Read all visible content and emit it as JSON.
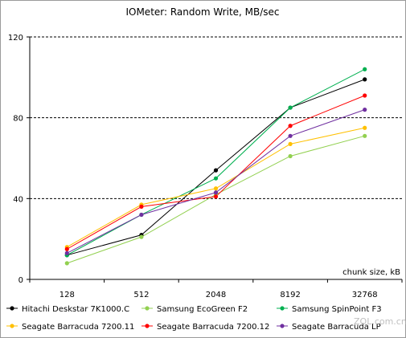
{
  "chart_data": {
    "type": "line",
    "title": "IOMeter: Random  Write, MB/sec",
    "xlabel": "chunk size, kB",
    "ylabel": "",
    "categories": [
      "128",
      "512",
      "2048",
      "8192",
      "32768"
    ],
    "yticks": [
      "0",
      "40",
      "80",
      "120"
    ],
    "ylim": [
      0,
      120
    ],
    "grid": "horizontal dashed",
    "legend_position": "bottom",
    "series": [
      {
        "name": "Hitachi Deskstar 7K1000.C",
        "color": "#000000",
        "values": [
          12,
          22,
          54,
          85,
          99
        ]
      },
      {
        "name": "Samsung EcoGreen F2",
        "color": "#92d050",
        "values": [
          8,
          21,
          42,
          61,
          71
        ]
      },
      {
        "name": "Samsung SpinPoint F3",
        "color": "#00b050",
        "values": [
          12,
          32,
          50,
          85,
          104
        ]
      },
      {
        "name": "Seagate Barracuda 7200.11",
        "color": "#ffc000",
        "values": [
          16,
          37,
          45,
          67,
          75
        ]
      },
      {
        "name": "Seagate Barracuda 7200.12",
        "color": "#ff0000",
        "values": [
          15,
          36,
          41,
          76,
          91
        ]
      },
      {
        "name": "Seagate Barracuda LP",
        "color": "#7030a0",
        "values": [
          13,
          32,
          43,
          71,
          84
        ]
      }
    ]
  },
  "watermark": "ZOL.com.cn"
}
